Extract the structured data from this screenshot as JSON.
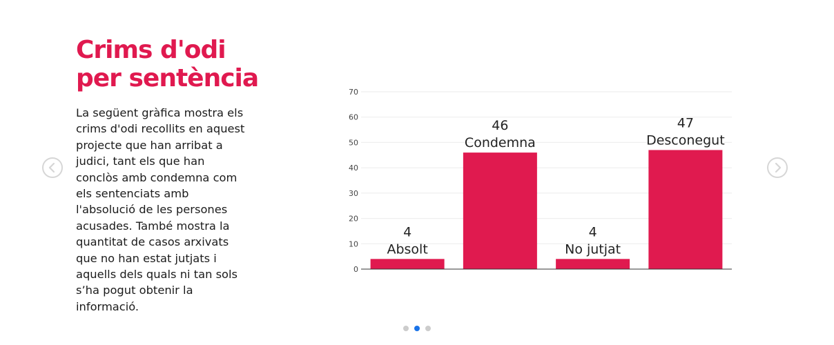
{
  "heading": {
    "lines": [
      "Crims d'odi",
      "per sentència"
    ]
  },
  "description": {
    "lines": [
      "La següent gràfica mostra els",
      "crims d'odi recollits en aquest",
      "projecte que han arribat a",
      "judici, tant els que han",
      "conclòs amb condemna com",
      "els sentenciats amb",
      "l'absolució de les persones",
      "acusades. També mostra la",
      "quantitat de casos arxivats",
      "que no han estat jutjats i",
      "aquells dels quals ni tan sols",
      "s’ha pogut obtenir la",
      "informació."
    ]
  },
  "colors": {
    "accent": "#e0194f",
    "bar": "#e01a4f",
    "dot_active": "#1a73e8",
    "dot_inactive": "#cccccc",
    "arrow": "#d6d6d6"
  },
  "carousel": {
    "prev_icon": "chevron-left-icon",
    "next_icon": "chevron-right-icon",
    "slides": 3,
    "active_slide": 2
  },
  "chart_data": {
    "type": "bar",
    "title": "",
    "xlabel": "",
    "ylabel": "",
    "categories": [
      "Absolt",
      "Condemna",
      "No jutjat",
      "Desconegut"
    ],
    "values": [
      4,
      46,
      4,
      47
    ],
    "ylim": [
      0,
      70
    ],
    "yticks": [
      0,
      10,
      20,
      30,
      40,
      50,
      60,
      70
    ],
    "grid": true,
    "legend": "none"
  }
}
